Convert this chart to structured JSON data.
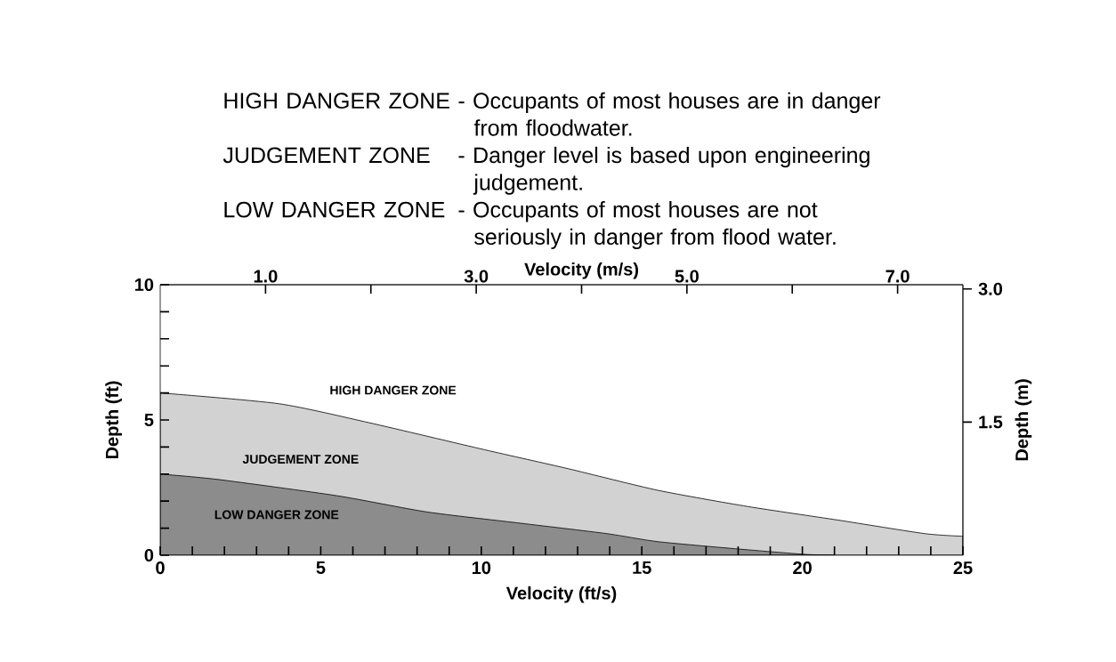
{
  "chart_data": {
    "type": "area",
    "xlabel": "Velocity (ft/s)",
    "ylabel": "Depth (ft)",
    "x2label": "Velocity (m/s)",
    "y2label": "Depth (m)",
    "xlim": [
      0,
      25
    ],
    "ylim": [
      0,
      10
    ],
    "x2lim": [
      0,
      7.62
    ],
    "y2lim": [
      0,
      3.048
    ],
    "xticks": [
      0,
      {
        "value": 1,
        "label": null
      },
      {
        "value": 2,
        "label": null
      },
      {
        "value": 3,
        "label": null
      },
      {
        "value": 4,
        "label": null
      },
      5,
      {
        "value": 6,
        "label": null
      },
      {
        "value": 7,
        "label": null
      },
      {
        "value": 8,
        "label": null
      },
      {
        "value": 9,
        "label": null
      },
      10,
      {
        "value": 11,
        "label": null
      },
      {
        "value": 12,
        "label": null
      },
      {
        "value": 13,
        "label": null
      },
      {
        "value": 14,
        "label": null
      },
      15,
      {
        "value": 16,
        "label": null
      },
      {
        "value": 17,
        "label": null
      },
      {
        "value": 18,
        "label": null
      },
      {
        "value": 19,
        "label": null
      },
      20,
      {
        "value": 21,
        "label": null
      },
      {
        "value": 22,
        "label": null
      },
      {
        "value": 23,
        "label": null
      },
      {
        "value": 24,
        "label": null
      },
      25
    ],
    "yticks": [
      0,
      {
        "value": 1,
        "label": null
      },
      {
        "value": 2,
        "label": null
      },
      {
        "value": 3,
        "label": null
      },
      {
        "value": 4,
        "label": null
      },
      5,
      {
        "value": 6,
        "label": null
      },
      {
        "value": 7,
        "label": null
      },
      {
        "value": 8,
        "label": null
      },
      {
        "value": 9,
        "label": null
      },
      10
    ],
    "x2ticks": [
      {
        "value": 1,
        "label": "1.0"
      },
      {
        "value": 2,
        "label": null
      },
      {
        "value": 3,
        "label": "3.0"
      },
      {
        "value": 4,
        "label": null
      },
      {
        "value": 5,
        "label": "5.0"
      },
      {
        "value": 6,
        "label": null
      },
      {
        "value": 7,
        "label": "7.0"
      }
    ],
    "y2ticks": [
      1.5,
      {
        "value": 3,
        "label": "3.0"
      }
    ],
    "series": [
      {
        "color": "#d2d2d2",
        "x": [
          0,
          3.7,
          6.5,
          10.1,
          12.7,
          15.5,
          18.3,
          21.1,
          23.8,
          25
        ],
        "values": [
          6.0,
          5.6,
          4.9,
          3.9,
          3.2,
          2.4,
          1.8,
          1.3,
          0.8,
          0.7
        ]
      },
      {
        "color": "#8c8c8c",
        "x": [
          0,
          1.8,
          5.5,
          8.3,
          11.1,
          13.9,
          15.5,
          18.3,
          20.1,
          21
        ],
        "values": [
          3.0,
          2.8,
          2.2,
          1.6,
          1.2,
          0.8,
          0.5,
          0.2,
          0.03,
          0
        ]
      }
    ],
    "annotations": [
      "HIGH DANGER ZONE",
      "- Occupants of most houses are in danger from floodwater.",
      "JUDGEMENT ZONE",
      "- Danger level is based upon engineering judgement.",
      "LOW DANGER ZONE",
      "- Occupants of most houses are not seriously in danger from flood water.",
      "HIGH DANGER ZONE",
      "JUDGEMENT ZONE",
      "LOW DANGER ZONE"
    ]
  }
}
